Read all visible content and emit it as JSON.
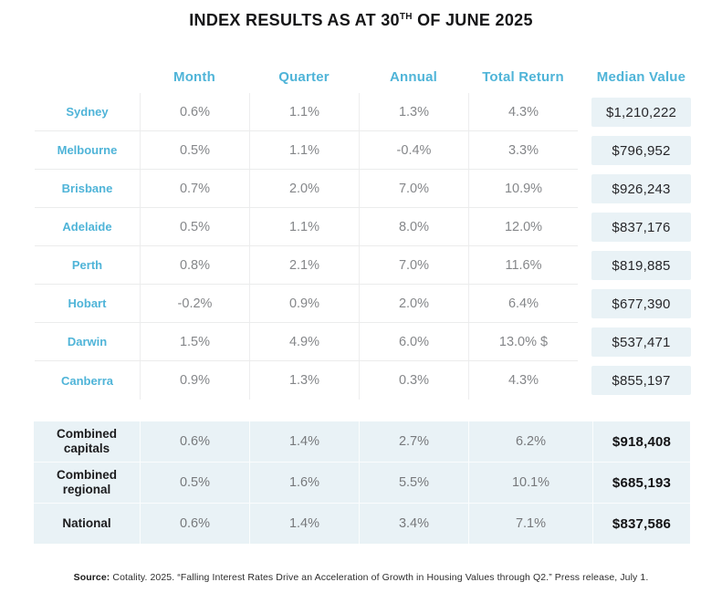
{
  "title": {
    "prefix": "INDEX RESULTS AS AT 30",
    "superscript": "TH",
    "suffix": " OF JUNE 2025"
  },
  "chart_data": {
    "type": "table",
    "title": "INDEX RESULTS AS AT 30TH OF JUNE 2025",
    "columns": [
      "Month",
      "Quarter",
      "Annual",
      "Total Return",
      "Median Value"
    ],
    "rows": [
      {
        "label": "Sydney",
        "month": "0.6%",
        "quarter": "1.1%",
        "annual": "1.3%",
        "total_return": "4.3%",
        "median_value": "$1,210,222"
      },
      {
        "label": "Melbourne",
        "month": "0.5%",
        "quarter": "1.1%",
        "annual": "-0.4%",
        "total_return": "3.3%",
        "median_value": "$796,952"
      },
      {
        "label": "Brisbane",
        "month": "0.7%",
        "quarter": "2.0%",
        "annual": "7.0%",
        "total_return": "10.9%",
        "median_value": "$926,243"
      },
      {
        "label": "Adelaide",
        "month": "0.5%",
        "quarter": "1.1%",
        "annual": "8.0%",
        "total_return": "12.0%",
        "median_value": "$837,176"
      },
      {
        "label": "Perth",
        "month": "0.8%",
        "quarter": "2.1%",
        "annual": "7.0%",
        "total_return": "11.6%",
        "median_value": "$819,885"
      },
      {
        "label": "Hobart",
        "month": "-0.2%",
        "quarter": "0.9%",
        "annual": "2.0%",
        "total_return": "6.4%",
        "median_value": "$677,390"
      },
      {
        "label": "Darwin",
        "month": "1.5%",
        "quarter": "4.9%",
        "annual": "6.0%",
        "total_return": "13.0% $",
        "median_value": "$537,471"
      },
      {
        "label": "Canberra",
        "month": "0.9%",
        "quarter": "1.3%",
        "annual": "0.3%",
        "total_return": "4.3%",
        "median_value": "$855,197"
      }
    ],
    "summary_rows": [
      {
        "label": "Combined capitals",
        "month": "0.6%",
        "quarter": "1.4%",
        "annual": "2.7%",
        "total_return": "6.2%",
        "median_value": "$918,408"
      },
      {
        "label": "Combined regional",
        "month": "0.5%",
        "quarter": "1.6%",
        "annual": "5.5%",
        "total_return": "10.1%",
        "median_value": "$685,193"
      },
      {
        "label": "National",
        "month": "0.6%",
        "quarter": "1.4%",
        "annual": "3.4%",
        "total_return": "7.1%",
        "median_value": "$837,586"
      }
    ]
  },
  "footer": {
    "source_label": "Source:",
    "source_text": " Cotality. 2025. “Falling Interest Rates Drive an Acceleration of Growth in Housing Values through Q2.” Press release, July 1."
  },
  "colors": {
    "accent_blue": "#4fb4d8",
    "median_box_bg": "#e9f2f6",
    "summary_bg": "#e9f2f6",
    "value_gray": "#85878a"
  }
}
